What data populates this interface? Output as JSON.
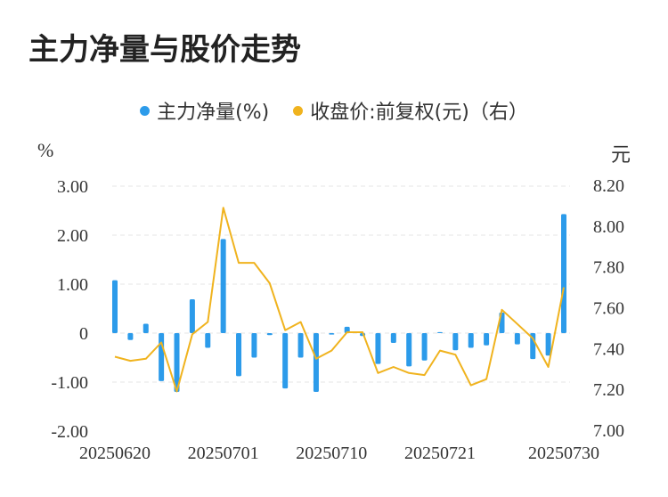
{
  "title": "主力净量与股价走势",
  "colors": {
    "bar": "#2c9bea",
    "line": "#f0b31e",
    "grid": "#e6e6e6",
    "text": "#333333"
  },
  "legend": [
    {
      "label": "主力净量(%)",
      "color": "#2c9bea"
    },
    {
      "label": "收盘价:前复权(元)（右）",
      "color": "#f0b31e"
    }
  ],
  "axis_units": {
    "left": "%",
    "right": "元"
  },
  "chart_data": {
    "type": "bar",
    "title": "主力净量与股价走势",
    "x_tick_labels": [
      "20250620",
      "20250701",
      "20250710",
      "20250721",
      "20250730"
    ],
    "y_left": {
      "ticks": [
        "3.00",
        "2.00",
        "1.00",
        "0",
        "-1.00",
        "-2.00"
      ],
      "range": [
        -2,
        3
      ]
    },
    "y_right": {
      "ticks": [
        "8.20",
        "8.00",
        "7.80",
        "7.60",
        "7.40",
        "7.20",
        "7.00"
      ],
      "range": [
        7.0,
        8.2
      ]
    },
    "grid": true,
    "legend_position": "top",
    "series": [
      {
        "name": "主力净量(%)",
        "type": "bar",
        "axis": "left",
        "values": [
          1.08,
          -0.14,
          0.19,
          -0.98,
          -1.2,
          0.69,
          -0.3,
          1.92,
          -0.88,
          -0.5,
          -0.04,
          -1.13,
          -0.5,
          -1.2,
          -0.03,
          0.13,
          -0.06,
          -0.63,
          -0.2,
          -0.68,
          -0.56,
          0.02,
          -0.35,
          -0.3,
          -0.25,
          0.42,
          -0.23,
          -0.53,
          -0.46,
          2.43
        ]
      },
      {
        "name": "收盘价:前复权(元)（右）",
        "type": "line",
        "axis": "right",
        "values": [
          7.36,
          7.34,
          7.35,
          7.43,
          7.19,
          7.47,
          7.53,
          8.09,
          7.82,
          7.82,
          7.72,
          7.49,
          7.53,
          7.35,
          7.39,
          7.48,
          7.48,
          7.28,
          7.31,
          7.28,
          7.27,
          7.39,
          7.37,
          7.22,
          7.25,
          7.59,
          7.52,
          7.45,
          7.31,
          7.7
        ]
      }
    ]
  }
}
